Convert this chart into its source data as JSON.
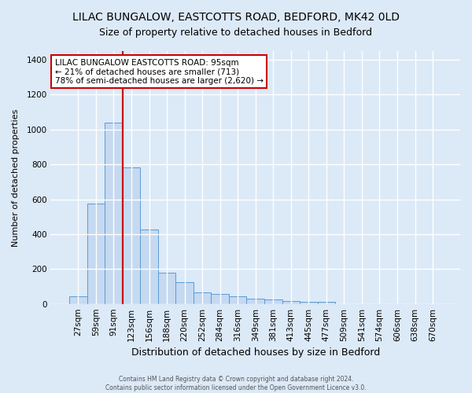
{
  "title": "LILAC BUNGALOW, EASTCOTTS ROAD, BEDFORD, MK42 0LD",
  "subtitle": "Size of property relative to detached houses in Bedford",
  "xlabel": "Distribution of detached houses by size in Bedford",
  "ylabel": "Number of detached properties",
  "bar_labels": [
    "27sqm",
    "59sqm",
    "91sqm",
    "123sqm",
    "156sqm",
    "188sqm",
    "220sqm",
    "252sqm",
    "284sqm",
    "316sqm",
    "349sqm",
    "381sqm",
    "413sqm",
    "445sqm",
    "477sqm",
    "509sqm",
    "541sqm",
    "574sqm",
    "606sqm",
    "638sqm",
    "670sqm"
  ],
  "bar_values": [
    45,
    575,
    1040,
    785,
    425,
    180,
    125,
    65,
    55,
    45,
    28,
    25,
    15,
    10,
    12,
    0,
    0,
    0,
    0,
    0,
    0
  ],
  "bar_color": "#c5d9f0",
  "bar_edge_color": "#5b9bd5",
  "vline_color": "#cc0000",
  "vline_index": 2.5,
  "annotation_text": "LILAC BUNGALOW EASTCOTTS ROAD: 95sqm\n← 21% of detached houses are smaller (713)\n78% of semi-detached houses are larger (2,620) →",
  "annotation_box_color": "white",
  "annotation_box_edge_color": "#cc0000",
  "ylim": [
    0,
    1450
  ],
  "yticks": [
    0,
    200,
    400,
    600,
    800,
    1000,
    1200,
    1400
  ],
  "footer_line1": "Contains HM Land Registry data © Crown copyright and database right 2024.",
  "footer_line2": "Contains public sector information licensed under the Open Government Licence v3.0.",
  "bg_color": "#dce9f7",
  "plot_bg_color": "#dce9f7",
  "grid_color": "white",
  "title_fontsize": 10,
  "subtitle_fontsize": 9,
  "xlabel_fontsize": 9,
  "ylabel_fontsize": 8,
  "tick_fontsize": 7.5,
  "annotation_fontsize": 7.5
}
